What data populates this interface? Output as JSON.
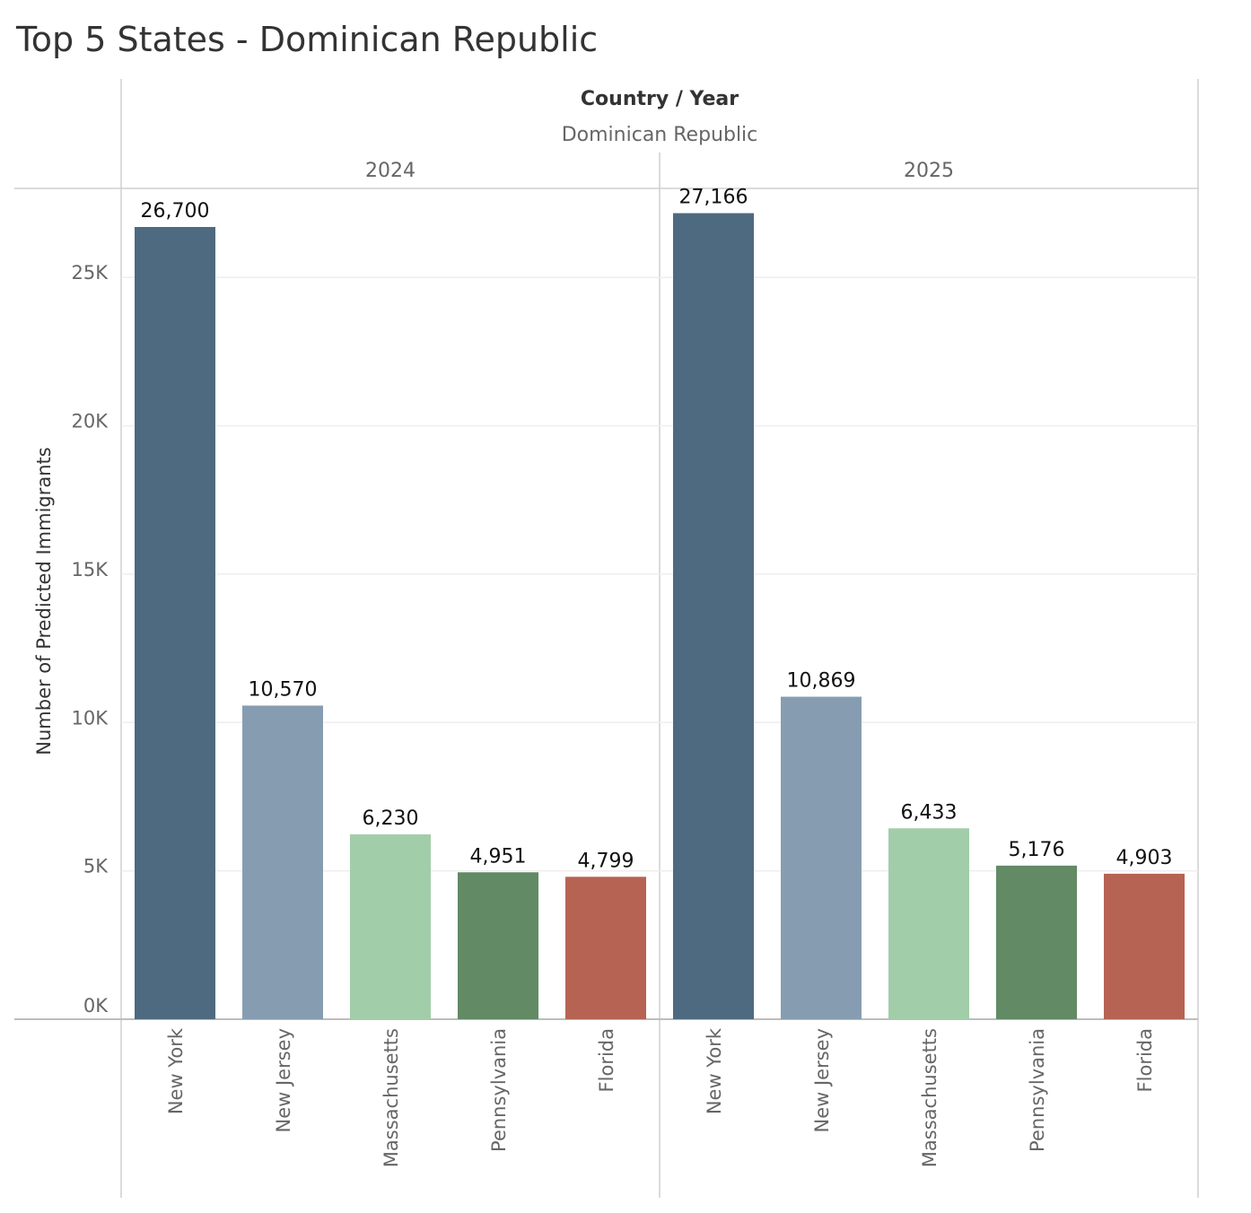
{
  "title": "Top 5 States - Dominican Republic",
  "column_header": {
    "label": "Country / Year",
    "country": "Dominican Republic"
  },
  "chart_data": {
    "type": "bar",
    "title": "Top 5 States - Dominican Republic",
    "ylabel": "Number of Predicted Immigrants",
    "xlabel": "",
    "ylim": [
      0,
      28000
    ],
    "yticks": [
      0,
      5000,
      10000,
      15000,
      20000,
      25000
    ],
    "ytick_labels": [
      "0K",
      "5K",
      "10K",
      "15K",
      "20K",
      "25K"
    ],
    "grid": true,
    "categories": [
      "New York",
      "New Jersey",
      "Massachusetts",
      "Pennsylvania",
      "Florida"
    ],
    "colors": [
      "#4e6a80",
      "#869db1",
      "#a2cda9",
      "#628a65",
      "#b66354"
    ],
    "panels": [
      {
        "year": "2024",
        "values": [
          26700,
          10570,
          6230,
          4951,
          4799
        ],
        "value_labels": [
          "26,700",
          "10,570",
          "6,230",
          "4,951",
          "4,799"
        ]
      },
      {
        "year": "2025",
        "values": [
          27166,
          10869,
          6433,
          5176,
          4903
        ],
        "value_labels": [
          "27,166",
          "10,869",
          "6,433",
          "5,176",
          "4,903"
        ]
      }
    ]
  }
}
